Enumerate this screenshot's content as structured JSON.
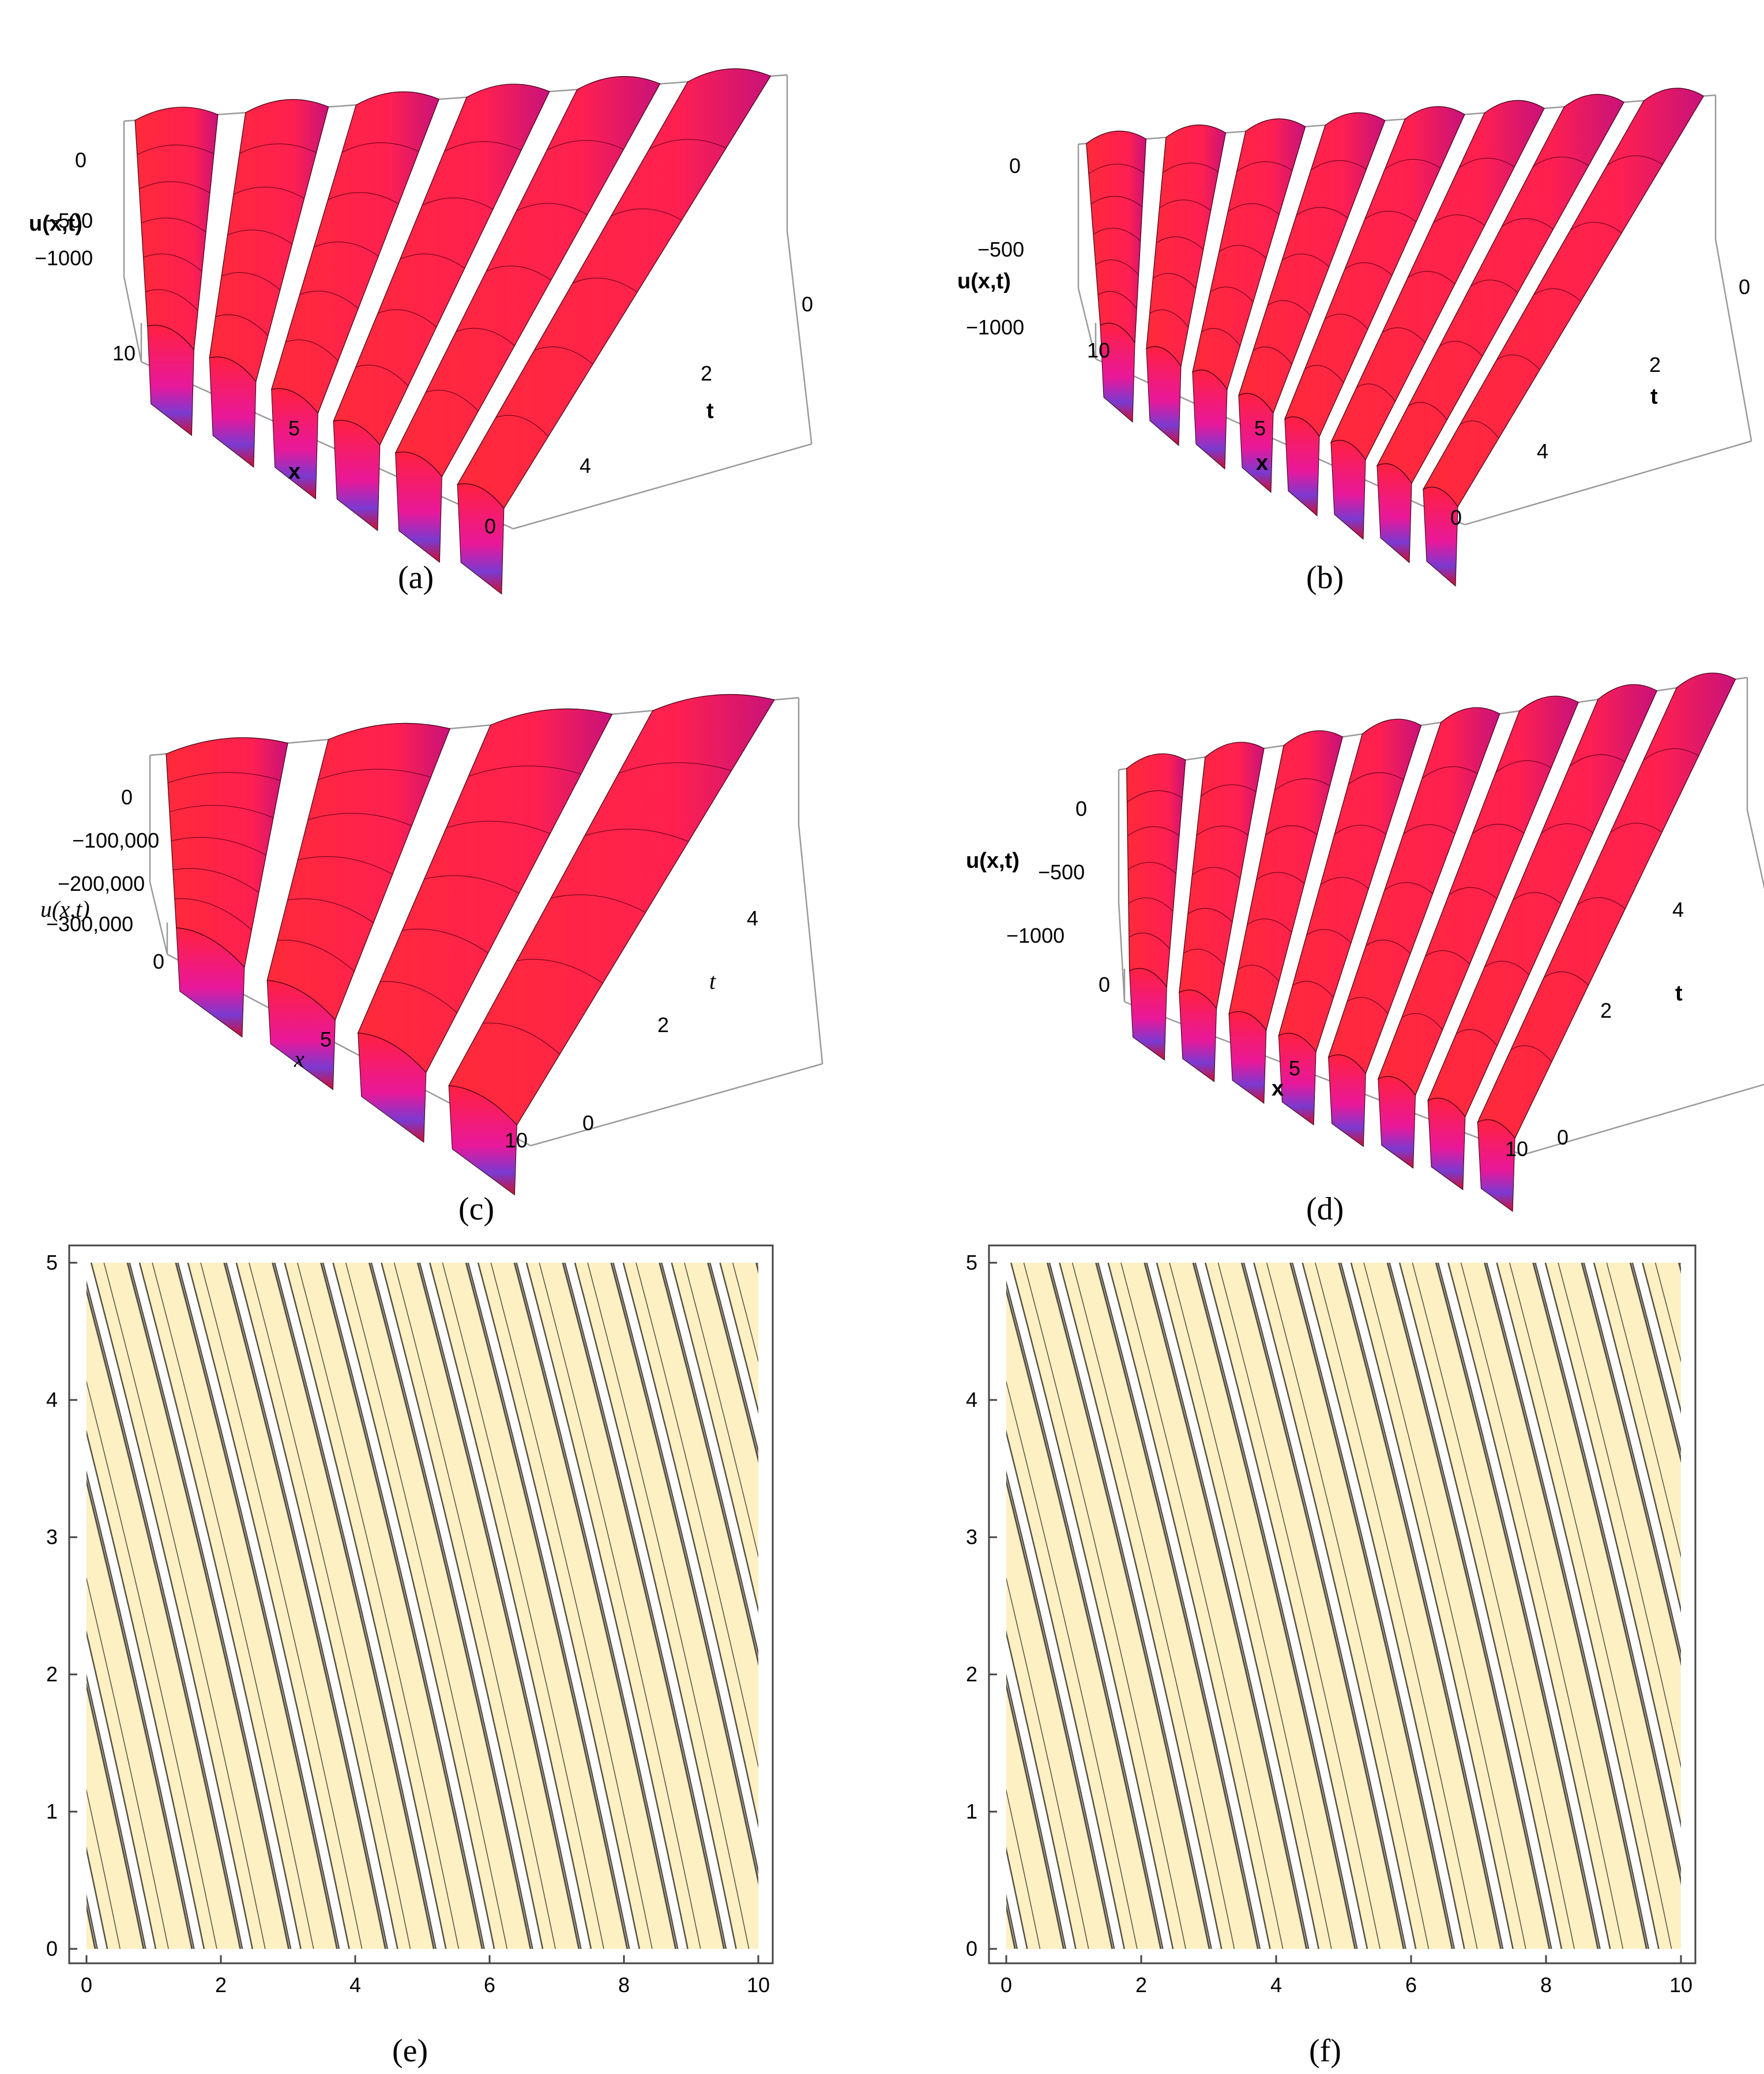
{
  "panels": [
    {
      "id": "a",
      "label": "(a)",
      "type": "surface3d",
      "zlabel": "u(x,t)",
      "xlabel": "x",
      "tlabel": "t",
      "zticks": [
        "0",
        "−500",
        "−1000"
      ],
      "xticks": [
        "10",
        "5",
        "0"
      ],
      "tticks": [
        "0",
        "2",
        "4"
      ],
      "ridges": 6
    },
    {
      "id": "b",
      "label": "(b)",
      "type": "surface3d",
      "zlabel": "u(x,t)",
      "xlabel": "x",
      "tlabel": "t",
      "zticks": [
        "0",
        "−500",
        "−1000"
      ],
      "xticks": [
        "10",
        "5",
        "0"
      ],
      "tticks": [
        "0",
        "2",
        "4"
      ],
      "ridges": 8
    },
    {
      "id": "c",
      "label": "(c)",
      "type": "surface3d",
      "zlabel": "u(x,t)",
      "xlabel": "x",
      "tlabel": "t",
      "zticks": [
        "0",
        "−100,000",
        "−200,000",
        "−300,000"
      ],
      "xticks": [
        "0",
        "5",
        "10"
      ],
      "tticks": [
        "0",
        "2",
        "4"
      ],
      "ridges": 4
    },
    {
      "id": "d",
      "label": "(d)",
      "type": "surface3d",
      "zlabel": "u(x,t)",
      "xlabel": "x",
      "tlabel": "t",
      "zticks": [
        "0",
        "−500",
        "−1000"
      ],
      "xticks": [
        "0",
        "5",
        "10"
      ],
      "tticks": [
        "0",
        "2",
        "4"
      ],
      "ridges": 8
    },
    {
      "id": "e",
      "label": "(e)",
      "type": "contour",
      "xticks": [
        "0",
        "2",
        "4",
        "6",
        "8",
        "10"
      ],
      "yticks": [
        "0",
        "1",
        "2",
        "3",
        "4",
        "5"
      ],
      "xlim": [
        0,
        10
      ],
      "ylim": [
        0,
        5
      ],
      "fill_color": "#fdf0c2",
      "line_color": "#555044",
      "bands": 15
    },
    {
      "id": "f",
      "label": "(f)",
      "type": "contour",
      "xticks": [
        "0",
        "2",
        "4",
        "6",
        "8",
        "10"
      ],
      "yticks": [
        "0",
        "1",
        "2",
        "3",
        "4",
        "5"
      ],
      "xlim": [
        0,
        10
      ],
      "ylim": [
        0,
        5
      ],
      "fill_color": "#fdf0c2",
      "line_color": "#555044",
      "bands": 15
    }
  ],
  "colors": {
    "surface": "#f0203a",
    "surface_dark": "#b0103a",
    "valley": "#7a3ad0"
  }
}
